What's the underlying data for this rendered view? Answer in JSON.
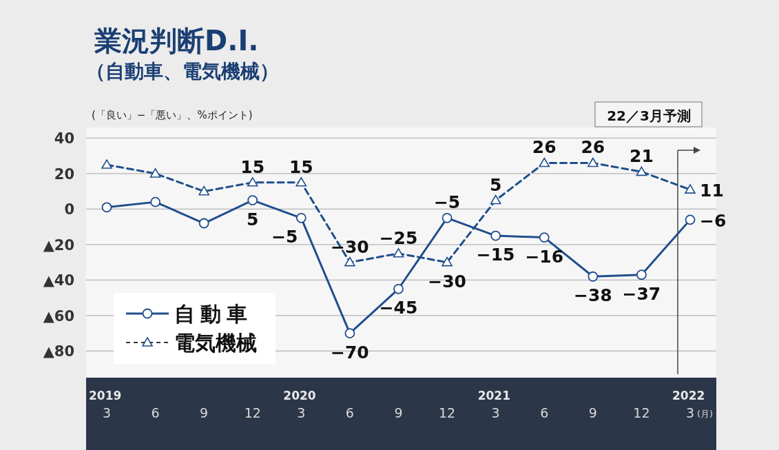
{
  "chart_data": {
    "type": "line",
    "title": "業況判断D.I.",
    "subtitle": "（自動車、電気機械）",
    "ylabel": "(「良い」−「悪い」、%ポイント)",
    "xlabel": "(月)",
    "categories": [
      "2019\n3",
      "6",
      "9",
      "12",
      "2020\n3",
      "6",
      "9",
      "12",
      "2021\n3",
      "6",
      "9",
      "12",
      "2022\n3"
    ],
    "series": [
      {
        "name": "自動車",
        "color": "#1f4e8c",
        "marker": "circle",
        "line_style": "solid",
        "values": [
          1,
          4,
          -8,
          5,
          -5,
          -70,
          -45,
          -5,
          -15,
          -16,
          -38,
          -37,
          -6
        ],
        "value_labels": [
          null,
          null,
          null,
          "5",
          "−5",
          "−70",
          "−45",
          "−5",
          "−15",
          "−16",
          "−38",
          "−37",
          "−6"
        ]
      },
      {
        "name": "電気機械",
        "color": "#1f4e8c",
        "marker": "triangle",
        "line_style": "dashed",
        "values": [
          25,
          20,
          10,
          15,
          15,
          -30,
          -25,
          -30,
          5,
          26,
          26,
          21,
          11
        ],
        "value_labels": [
          null,
          null,
          null,
          "15",
          "15",
          "−30",
          "−25",
          "−30",
          "5",
          "26",
          "26",
          "21",
          "11"
        ]
      }
    ],
    "ylim": [
      -95,
      46
    ],
    "yticks": [
      40,
      20,
      0,
      {
        "value": -20,
        "label": "▲20"
      },
      {
        "value": -40,
        "label": "▲40"
      },
      {
        "value": -60,
        "label": "▲60"
      },
      {
        "value": -80,
        "label": "▲80"
      }
    ],
    "grid": "y",
    "legend": "bottom left",
    "ref_lines": [
      {
        "axis": "x",
        "value": "2022\n3",
        "label": "22／3月予測"
      }
    ]
  }
}
